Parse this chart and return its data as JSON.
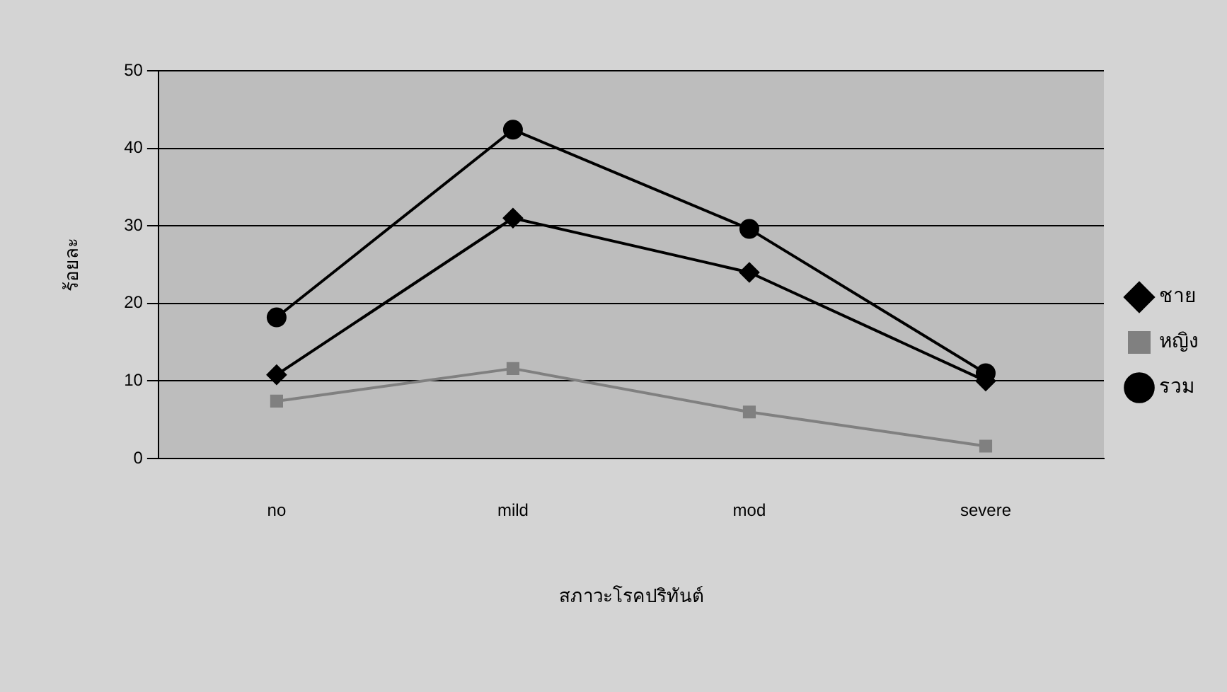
{
  "chart_data": {
    "type": "line",
    "xlabel": "สภาวะโรคปริทันต์",
    "ylabel": "ร้อยละ",
    "categories": [
      "no",
      "mild",
      "mod",
      "severe"
    ],
    "series": [
      {
        "name": "ชาย",
        "color": "#000000",
        "marker": "diamond",
        "values": [
          10.8,
          31,
          24,
          10
        ]
      },
      {
        "name": "หญิง",
        "color": "#808080",
        "marker": "square",
        "values": [
          7.4,
          11.6,
          6,
          1.6
        ]
      },
      {
        "name": "รวม",
        "color": "#000000",
        "marker": "circle",
        "values": [
          18.2,
          42.4,
          29.6,
          11
        ]
      }
    ],
    "ylim": [
      0,
      50
    ],
    "yticks": [
      0,
      10,
      20,
      30,
      40,
      50
    ],
    "grid": "y",
    "legend": "right"
  }
}
